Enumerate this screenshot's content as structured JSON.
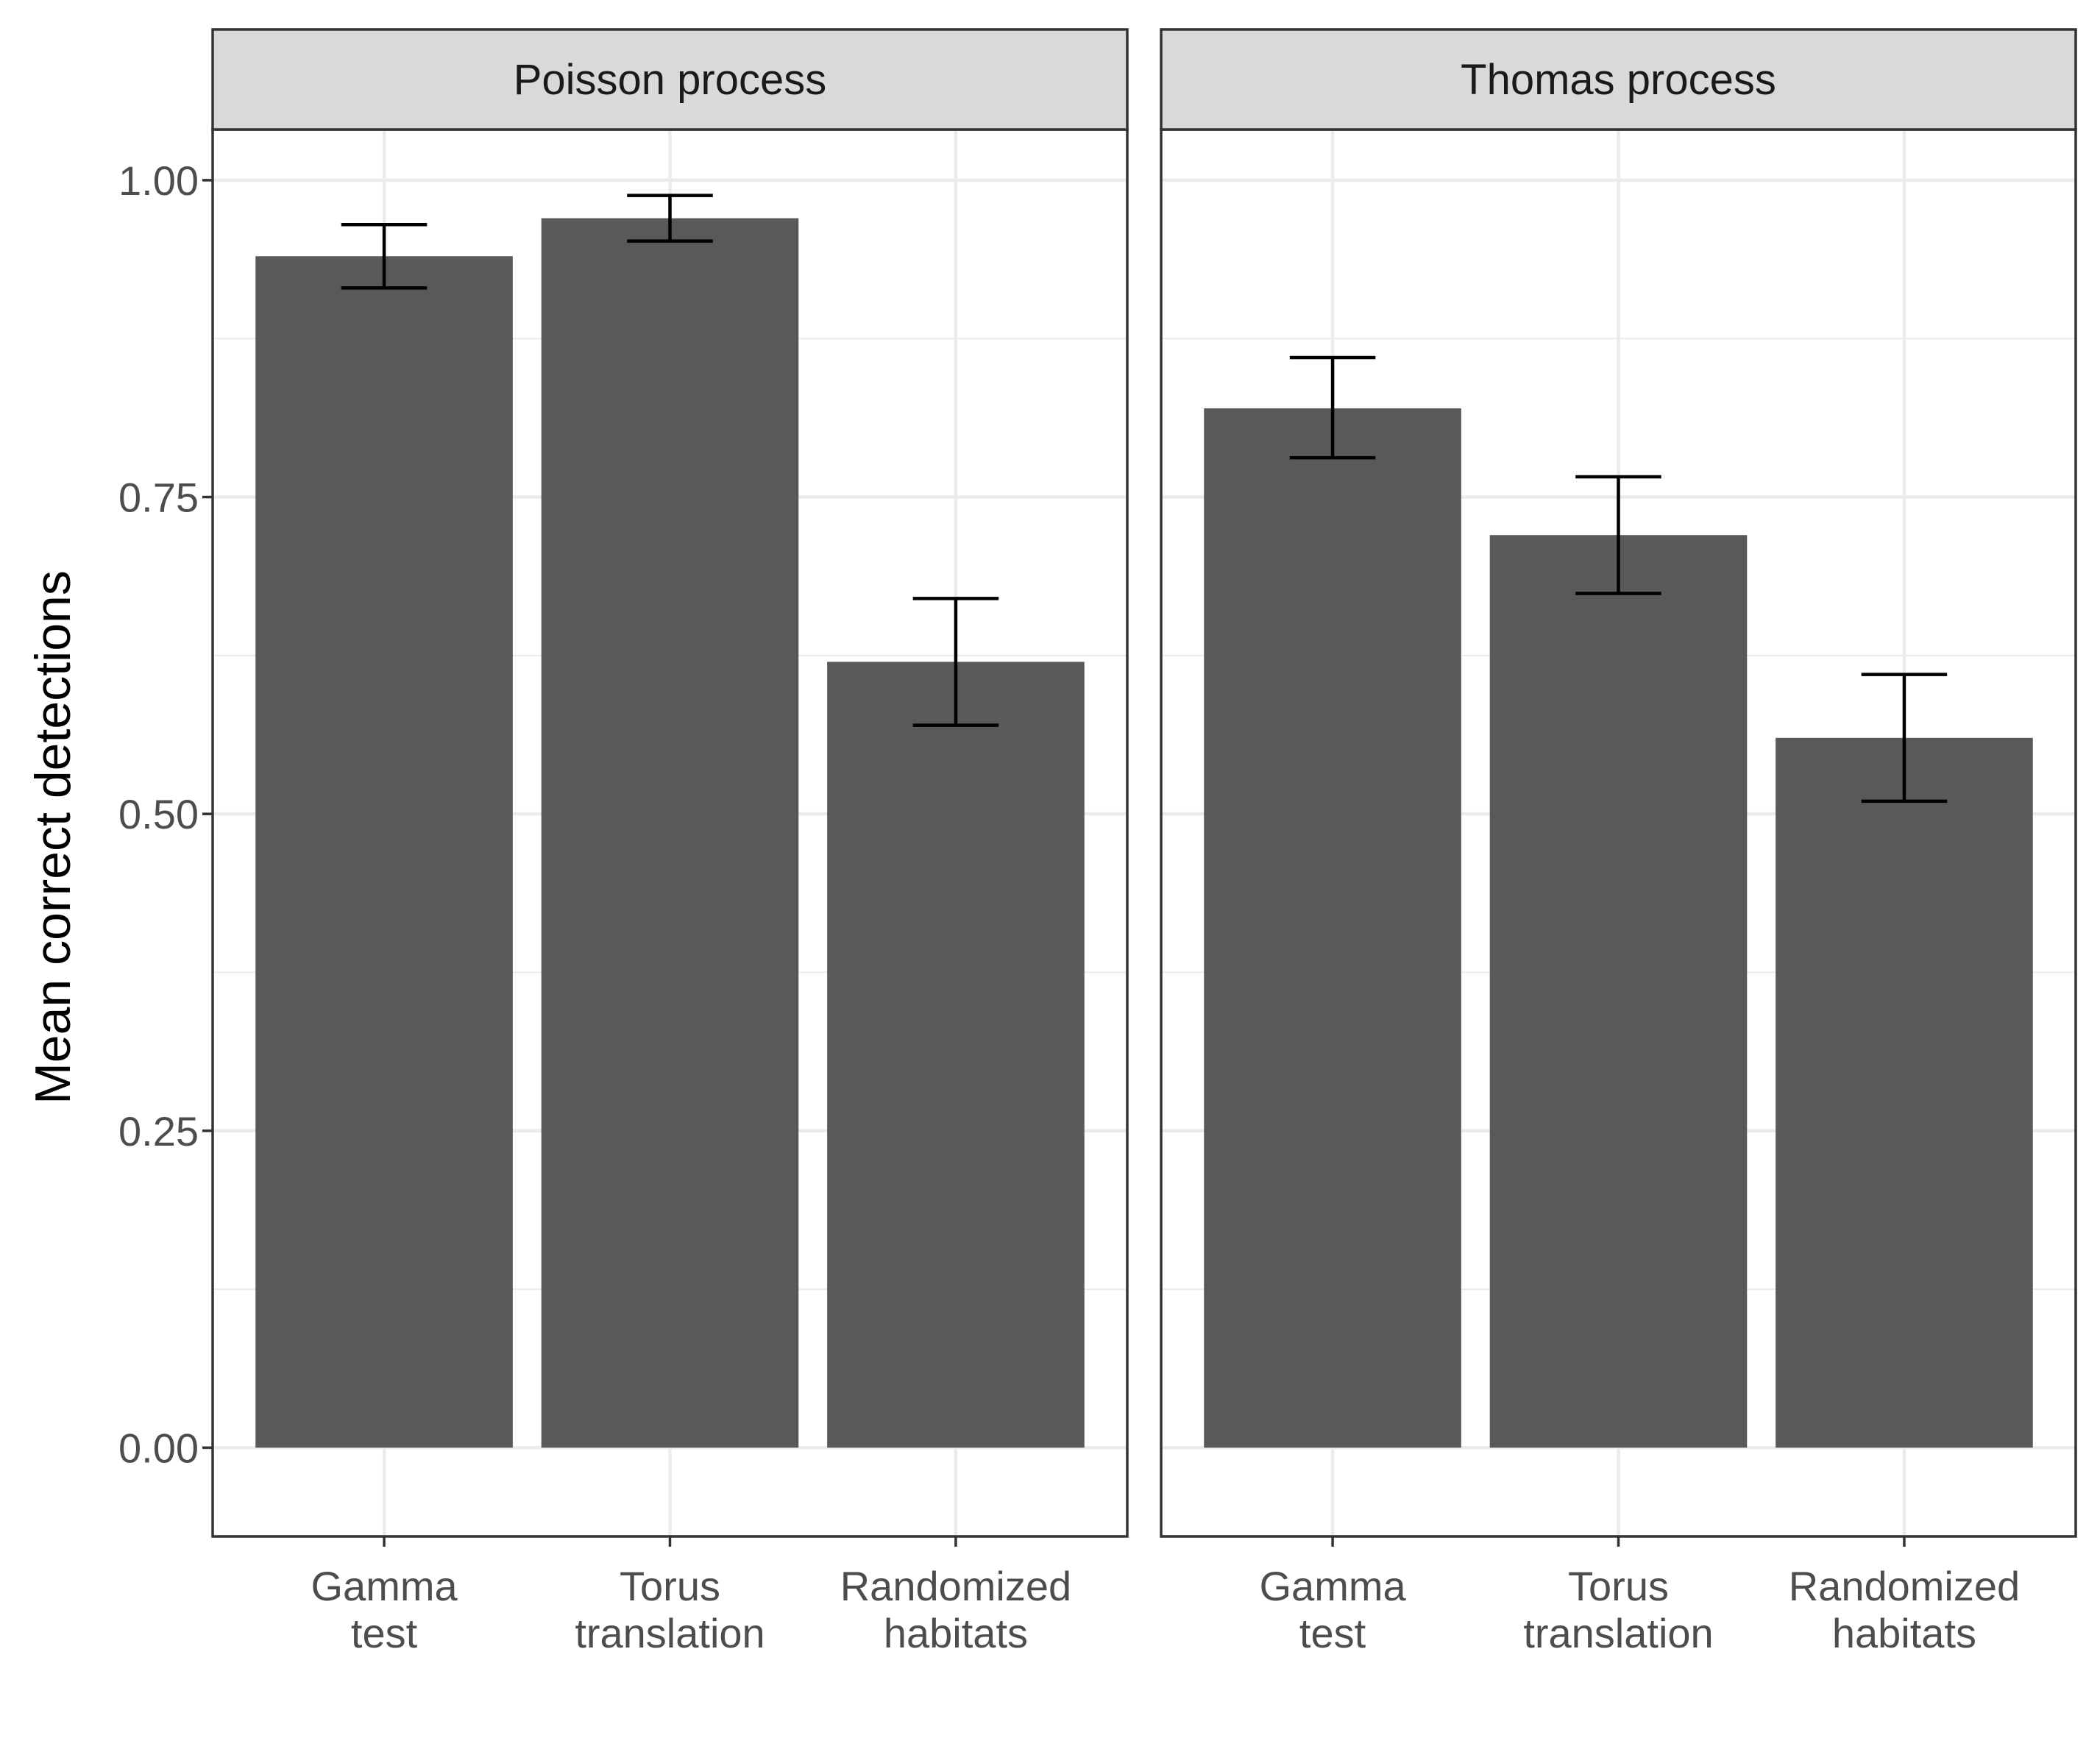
{
  "chart_data": {
    "type": "bar",
    "ylabel": "Mean correct detections",
    "xlabel": "",
    "ylim": [
      -0.07,
      1.04
    ],
    "yticks": [
      "0.00",
      "0.25",
      "0.50",
      "0.75",
      "1.00"
    ],
    "categories": [
      [
        "Gamma",
        "test"
      ],
      [
        "Torus",
        "translation"
      ],
      [
        "Randomized",
        "habitats"
      ]
    ],
    "grid": true,
    "colors": {
      "bar": "#595959",
      "error_bar": "#000000",
      "strip_bg": "#d9d9d9",
      "grid": "#ebebeb"
    },
    "panels": [
      {
        "title": "Poisson process",
        "values": [
          0.94,
          0.97,
          0.62
        ],
        "error_low": [
          0.915,
          0.952,
          0.57
        ],
        "error_high": [
          0.965,
          0.988,
          0.67
        ]
      },
      {
        "title": "Thomas process",
        "values": [
          0.82,
          0.72,
          0.56
        ],
        "error_low": [
          0.781,
          0.674,
          0.51
        ],
        "error_high": [
          0.86,
          0.766,
          0.61
        ]
      }
    ]
  }
}
